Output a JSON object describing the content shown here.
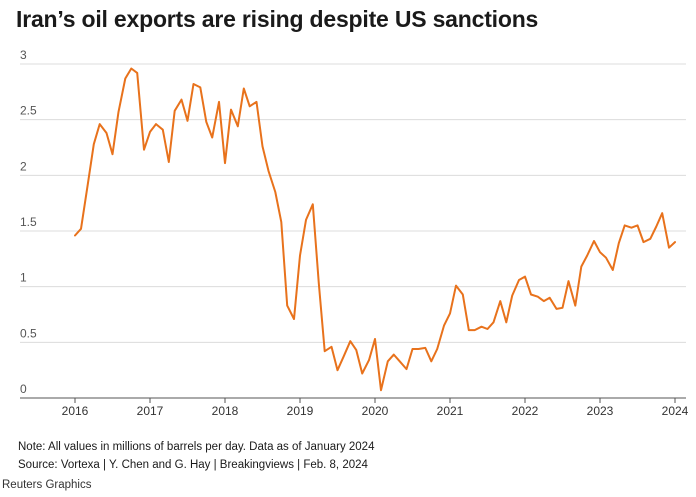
{
  "title": "Iran’s oil exports are rising despite US sanctions",
  "notes": {
    "note": "Note: All values in millions of barrels per day. Data as of January 2024",
    "source": "Source: Vortexa | Y. Chen and G. Hay | Breakingviews | Feb. 8, 2024",
    "credit": "Reuters Graphics"
  },
  "colors": {
    "line": "#e8721c",
    "grid": "#dcdcdc",
    "axis": "#555555",
    "text": "#1a1a1a"
  },
  "chart_data": {
    "type": "line",
    "title": "Iran’s oil exports are rising despite US sanctions",
    "xlabel": "",
    "ylabel": "",
    "ylim": [
      0,
      3
    ],
    "xlim": [
      2016.0,
      2024.0
    ],
    "yticks": [
      {
        "value": 0,
        "label": "0"
      },
      {
        "value": 0.5,
        "label": "0.5"
      },
      {
        "value": 1,
        "label": "1"
      },
      {
        "value": 1.5,
        "label": "1.5"
      },
      {
        "value": 2,
        "label": "2"
      },
      {
        "value": 2.5,
        "label": "2.5"
      },
      {
        "value": 3,
        "label": "3"
      }
    ],
    "xticks": [
      {
        "value": 2016,
        "label": "2016"
      },
      {
        "value": 2017,
        "label": "2017"
      },
      {
        "value": 2018,
        "label": "2018"
      },
      {
        "value": 2019,
        "label": "2019"
      },
      {
        "value": 2020,
        "label": "2020"
      },
      {
        "value": 2021,
        "label": "2021"
      },
      {
        "value": 2022,
        "label": "2022"
      },
      {
        "value": 2023,
        "label": "2023"
      },
      {
        "value": 2024,
        "label": "2024"
      }
    ],
    "grid": true,
    "series": [
      {
        "x": [
          2016.0,
          2016.08,
          2016.17,
          2016.25,
          2016.33,
          2016.42,
          2016.5,
          2016.58,
          2016.67,
          2016.75,
          2016.83,
          2016.92,
          2017.0,
          2017.08,
          2017.17,
          2017.25,
          2017.33,
          2017.42,
          2017.5,
          2017.58,
          2017.67,
          2017.75,
          2017.83,
          2017.92,
          2018.0,
          2018.08,
          2018.17,
          2018.25,
          2018.33,
          2018.42,
          2018.5,
          2018.58,
          2018.67,
          2018.75,
          2018.83,
          2018.92,
          2019.0,
          2019.08,
          2019.17,
          2019.25,
          2019.33,
          2019.42,
          2019.5,
          2019.58,
          2019.67,
          2019.75,
          2019.83,
          2019.92,
          2020.0,
          2020.08,
          2020.17,
          2020.25,
          2020.33,
          2020.42,
          2020.5,
          2020.58,
          2020.67,
          2020.75,
          2020.83,
          2020.92,
          2021.0,
          2021.08,
          2021.17,
          2021.25,
          2021.33,
          2021.42,
          2021.5,
          2021.58,
          2021.67,
          2021.75,
          2021.83,
          2021.92,
          2022.0,
          2022.08,
          2022.17,
          2022.25,
          2022.33,
          2022.42,
          2022.5,
          2022.58,
          2022.67,
          2022.75,
          2022.83,
          2022.92,
          2023.0,
          2023.08,
          2023.17,
          2023.25,
          2023.33,
          2023.42,
          2023.5,
          2023.58,
          2023.67,
          2023.75,
          2023.83,
          2023.92,
          2024.0
        ],
        "values": [
          1.46,
          1.52,
          1.92,
          2.28,
          2.46,
          2.38,
          2.19,
          2.57,
          2.87,
          2.96,
          2.92,
          2.23,
          2.39,
          2.46,
          2.41,
          2.12,
          2.58,
          2.68,
          2.49,
          2.82,
          2.79,
          2.48,
          2.34,
          2.66,
          2.11,
          2.59,
          2.44,
          2.78,
          2.62,
          2.66,
          2.26,
          2.04,
          1.85,
          1.58,
          0.83,
          0.71,
          1.28,
          1.6,
          1.74,
          1.03,
          0.42,
          0.46,
          0.25,
          0.37,
          0.51,
          0.43,
          0.22,
          0.34,
          0.53,
          0.07,
          0.33,
          0.39,
          0.33,
          0.26,
          0.44,
          0.44,
          0.45,
          0.33,
          0.44,
          0.65,
          0.76,
          1.01,
          0.93,
          0.61,
          0.61,
          0.64,
          0.62,
          0.68,
          0.87,
          0.68,
          0.92,
          1.06,
          1.09,
          0.93,
          0.91,
          0.87,
          0.9,
          0.8,
          0.81,
          1.05,
          0.83,
          1.18,
          1.28,
          1.41,
          1.31,
          1.26,
          1.15,
          1.39,
          1.55,
          1.53,
          1.55,
          1.4,
          1.43,
          1.54,
          1.66,
          1.35,
          1.4
        ]
      }
    ]
  }
}
